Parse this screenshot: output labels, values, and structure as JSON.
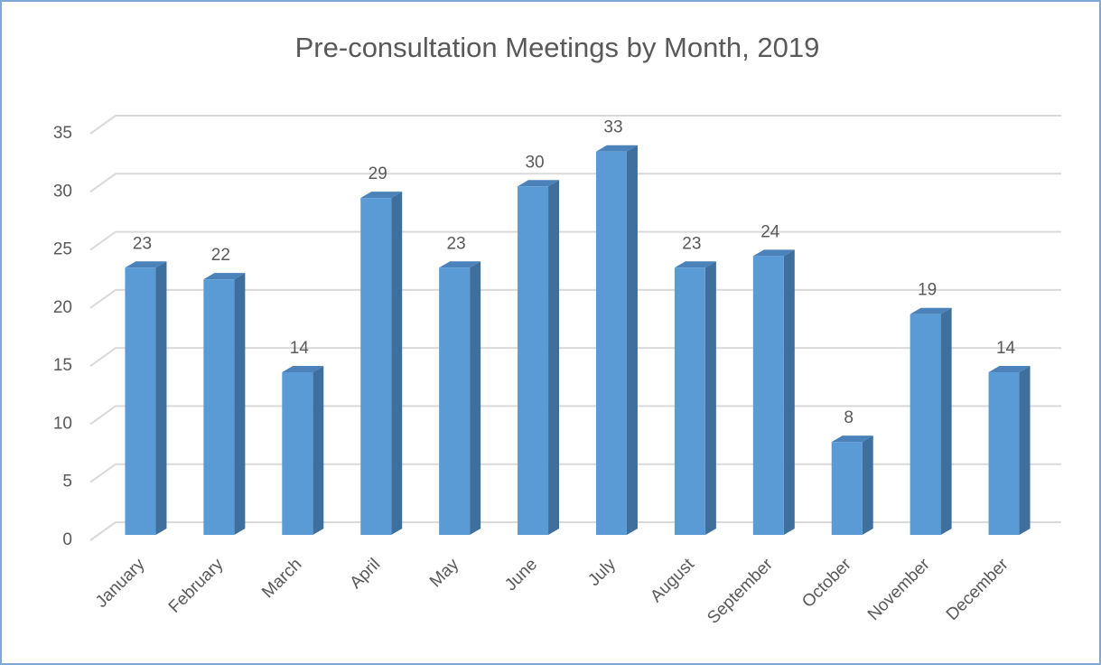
{
  "chart_data": {
    "type": "bar3d",
    "title": "Pre-consultation Meetings by Month, 2019",
    "categories": [
      "January",
      "February",
      "March",
      "April",
      "May",
      "June",
      "July",
      "August",
      "September",
      "October",
      "November",
      "December"
    ],
    "values": [
      23,
      22,
      14,
      29,
      23,
      30,
      33,
      23,
      24,
      8,
      19,
      14
    ],
    "color": "#5b9bd5",
    "ylim": [
      0,
      35
    ],
    "yticks": [
      0,
      5,
      10,
      15,
      20,
      25,
      30,
      35
    ],
    "grid": true
  }
}
